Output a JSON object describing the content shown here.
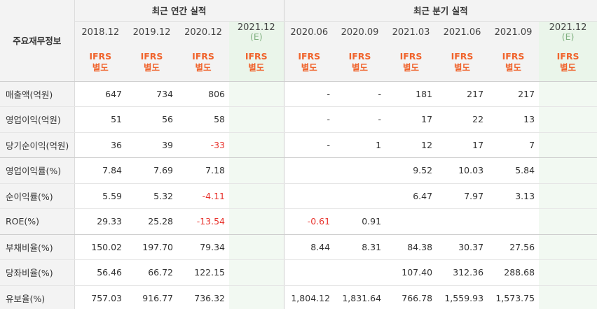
{
  "header": {
    "corner": "주요재무정보",
    "annual_group": "최근 연간 실적",
    "quarter_group": "최근 분기 실적",
    "ifrs_line1": "IFRS",
    "ifrs_line2": "별도",
    "est_mark": "(E)"
  },
  "periods": [
    {
      "label": "2018.12",
      "estimate": false
    },
    {
      "label": "2019.12",
      "estimate": false
    },
    {
      "label": "2020.12",
      "estimate": false
    },
    {
      "label": "2021.12",
      "estimate": true
    },
    {
      "label": "2020.06",
      "estimate": false
    },
    {
      "label": "2020.09",
      "estimate": false
    },
    {
      "label": "2021.03",
      "estimate": false
    },
    {
      "label": "2021.06",
      "estimate": false
    },
    {
      "label": "2021.09",
      "estimate": false
    },
    {
      "label": "2021.12",
      "estimate": true
    }
  ],
  "rows": [
    {
      "label": "매출액(억원)",
      "values": [
        "647",
        "734",
        "806",
        "",
        "-",
        "-",
        "181",
        "217",
        "217",
        ""
      ]
    },
    {
      "label": "영업이익(억원)",
      "values": [
        "51",
        "56",
        "58",
        "",
        "-",
        "-",
        "17",
        "22",
        "13",
        ""
      ]
    },
    {
      "label": "당기순이익(억원)",
      "values": [
        "36",
        "39",
        "-33",
        "",
        "-",
        "1",
        "12",
        "17",
        "7",
        ""
      ]
    },
    {
      "label": "영업이익률(%)",
      "values": [
        "7.84",
        "7.69",
        "7.18",
        "",
        "",
        "",
        "9.52",
        "10.03",
        "5.84",
        ""
      ]
    },
    {
      "label": "순이익률(%)",
      "values": [
        "5.59",
        "5.32",
        "-4.11",
        "",
        "",
        "",
        "6.47",
        "7.97",
        "3.13",
        ""
      ]
    },
    {
      "label": "ROE(%)",
      "values": [
        "29.33",
        "25.28",
        "-13.54",
        "",
        "-0.61",
        "0.91",
        "",
        "",
        "",
        ""
      ]
    },
    {
      "label": "부채비율(%)",
      "values": [
        "150.02",
        "197.70",
        "79.34",
        "",
        "8.44",
        "8.31",
        "84.38",
        "30.37",
        "27.56",
        ""
      ]
    },
    {
      "label": "당좌비율(%)",
      "values": [
        "56.46",
        "66.72",
        "122.15",
        "",
        "",
        "",
        "107.40",
        "312.36",
        "288.68",
        ""
      ]
    },
    {
      "label": "유보율(%)",
      "values": [
        "757.03",
        "916.77",
        "736.32",
        "",
        "1,804.12",
        "1,831.64",
        "766.78",
        "1,559.93",
        "1,573.75",
        ""
      ]
    }
  ]
}
